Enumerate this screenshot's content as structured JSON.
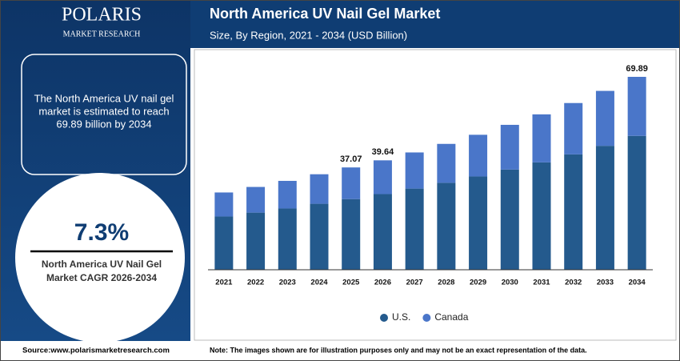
{
  "header": {
    "logo": "POLARIS",
    "logo_sub": "MARKET RESEARCH"
  },
  "sidebar": {
    "summary_lines": [
      "The North America UV nail gel",
      "market is estimated to reach",
      "69.89 billion by 2034"
    ],
    "cagr": "7.3%",
    "cagr_label_lines": [
      "North America UV Nail Gel",
      "Market CAGR 2026-2034"
    ]
  },
  "chart_data": {
    "type": "stacked-bar",
    "title": "North America UV Nail Gel Market",
    "subtitle": "Size, By Region, 2021 - 2034 (USD Billion)",
    "categories": [
      "2021",
      "2022",
      "2023",
      "2024",
      "2025",
      "2026",
      "2027",
      "2028",
      "2029",
      "2030",
      "2031",
      "2032",
      "2033",
      "2034"
    ],
    "series": [
      {
        "name": "U.S.",
        "color": "#245a8d",
        "values": [
          19.3,
          20.7,
          22.2,
          23.9,
          25.6,
          27.4,
          29.4,
          31.5,
          33.8,
          36.3,
          38.9,
          41.8,
          44.9,
          48.5
        ]
      },
      {
        "name": "Canada",
        "color": "#4a76c9",
        "values": [
          8.7,
          9.3,
          10.0,
          10.7,
          11.47,
          12.24,
          13.1,
          14.1,
          15.1,
          16.2,
          17.4,
          18.6,
          19.9,
          21.39
        ]
      }
    ],
    "total_labels": [
      null,
      null,
      null,
      null,
      37.07,
      39.64,
      null,
      null,
      null,
      null,
      null,
      null,
      null,
      69.89
    ],
    "legend": "bottom"
  },
  "footer": {
    "source": "Source:www.polarismarketresearch.com",
    "note": "Note: The images shown are for illustration purposes only and may not be an exact representation of the data."
  }
}
